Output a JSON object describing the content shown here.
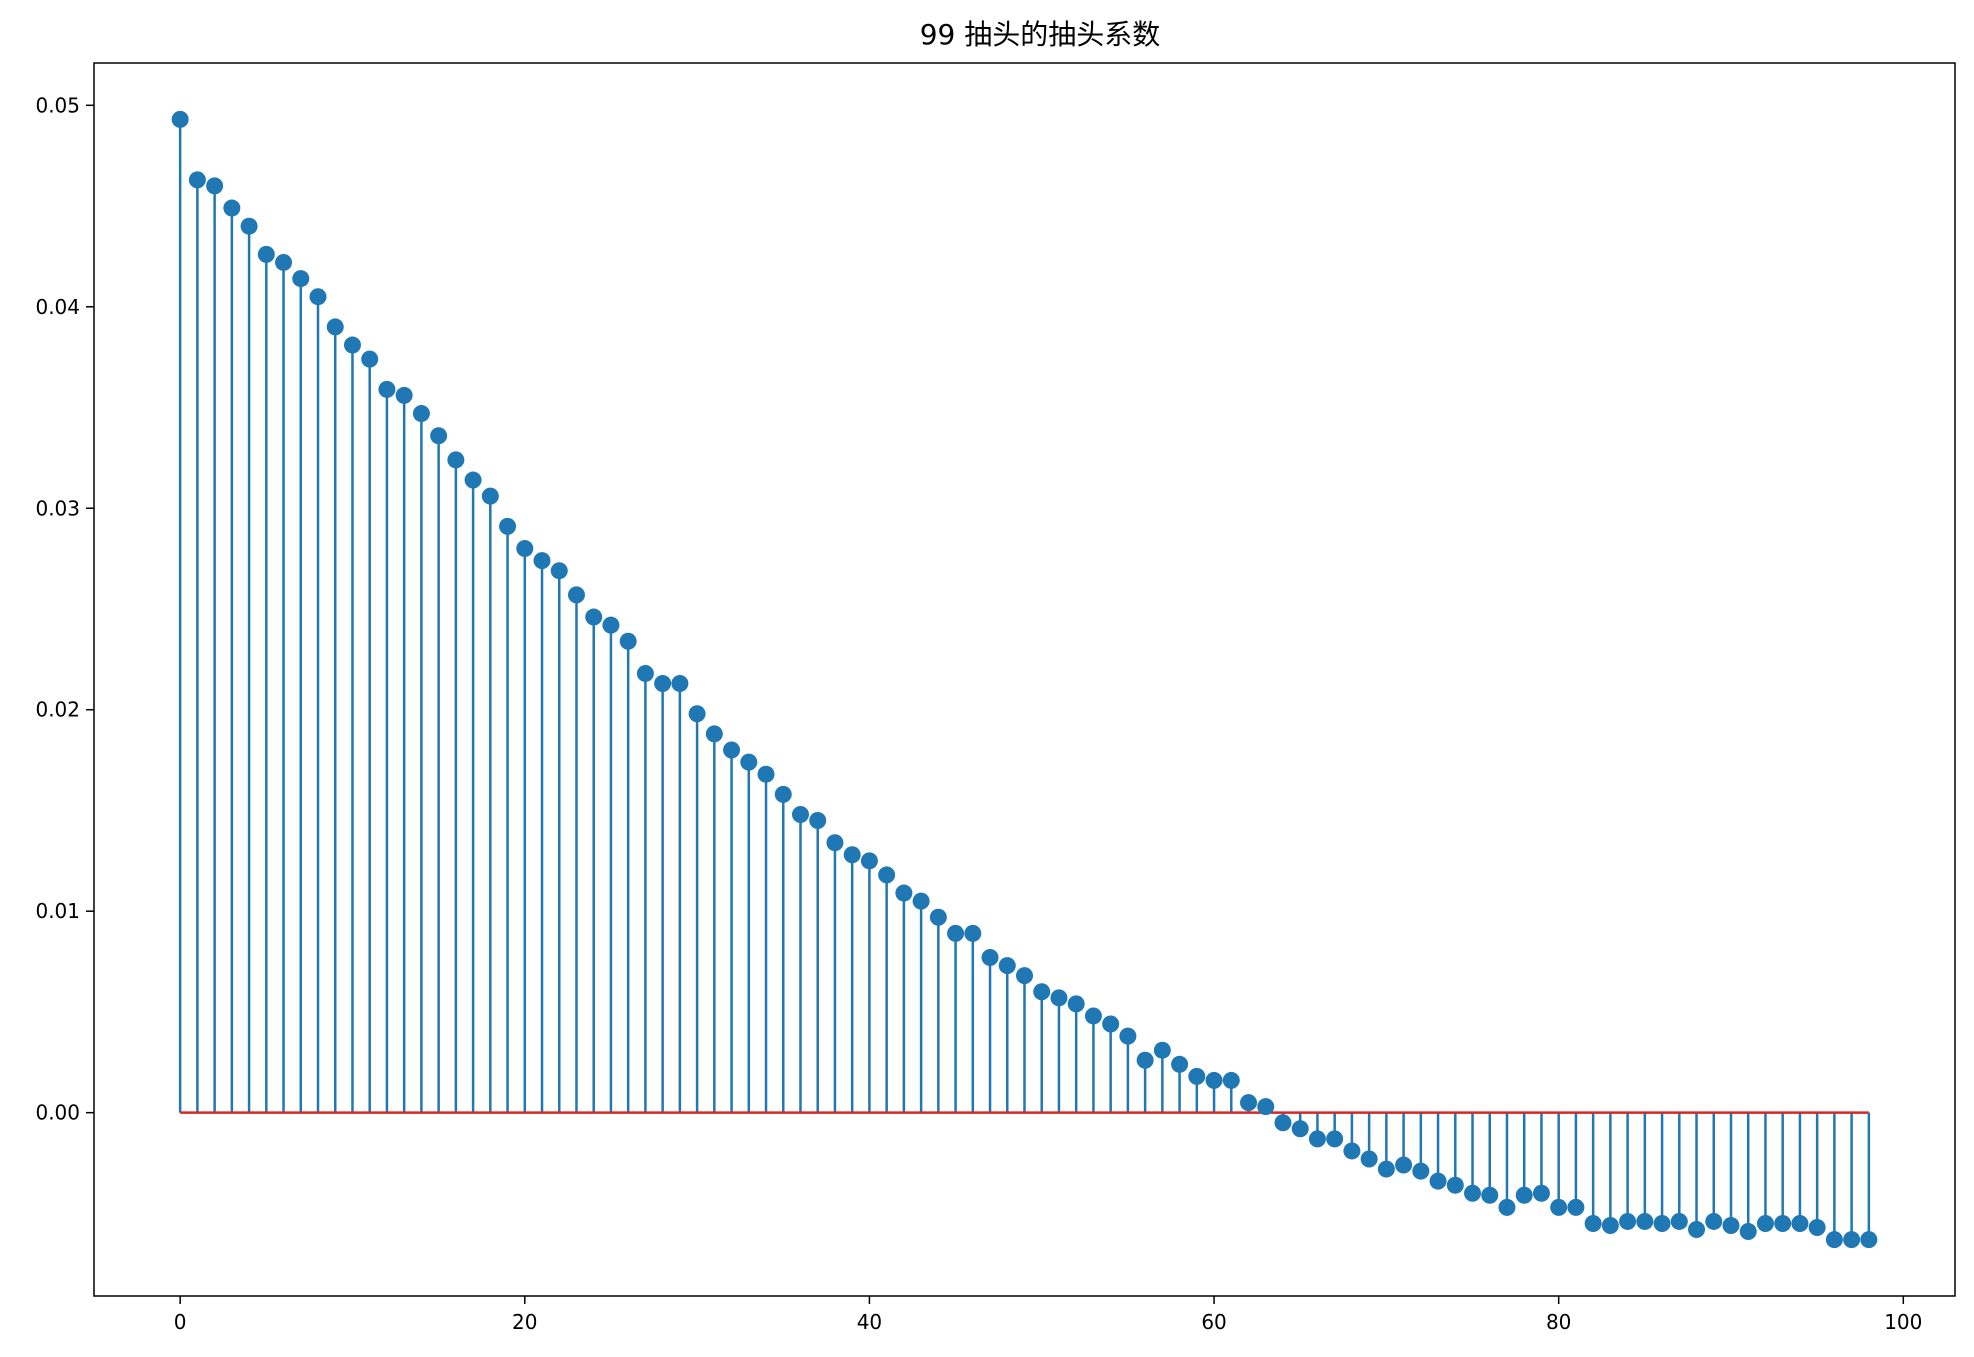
{
  "chart_data": {
    "type": "stem",
    "title": "99 抽头的抽头系数",
    "xlabel": "",
    "ylabel": "",
    "xlim": [
      -5,
      103
    ],
    "ylim": [
      -0.0091,
      0.0521
    ],
    "xticks": [
      0,
      20,
      40,
      60,
      80,
      100
    ],
    "xtick_labels": [
      "0",
      "20",
      "40",
      "60",
      "80",
      "100"
    ],
    "yticks": [
      0.0,
      0.01,
      0.02,
      0.03,
      0.04,
      0.05
    ],
    "ytick_labels": [
      "0.00",
      "0.01",
      "0.02",
      "0.03",
      "0.04",
      "0.05"
    ],
    "grid": false,
    "colors": {
      "stem": "#1f77b4",
      "marker": "#1f77b4",
      "baseline": "#d62728"
    },
    "baseline": 0,
    "x_start": 0,
    "values": [
      0.0493,
      0.0463,
      0.046,
      0.0449,
      0.044,
      0.0426,
      0.0422,
      0.0414,
      0.0405,
      0.039,
      0.0381,
      0.0374,
      0.0359,
      0.0356,
      0.0347,
      0.0336,
      0.0324,
      0.0314,
      0.0306,
      0.0291,
      0.028,
      0.0274,
      0.0269,
      0.0257,
      0.0246,
      0.0242,
      0.0234,
      0.0218,
      0.0213,
      0.0213,
      0.0198,
      0.0188,
      0.018,
      0.0174,
      0.0168,
      0.0158,
      0.0148,
      0.0145,
      0.0134,
      0.0128,
      0.0125,
      0.0118,
      0.0109,
      0.0105,
      0.0097,
      0.0089,
      0.0089,
      0.0077,
      0.0073,
      0.0068,
      0.006,
      0.0057,
      0.0054,
      0.0048,
      0.0044,
      0.0038,
      0.0026,
      0.0031,
      0.0024,
      0.0018,
      0.0016,
      0.0016,
      0.0005,
      0.0003,
      -0.0005,
      -0.0008,
      -0.0013,
      -0.0013,
      -0.0019,
      -0.0023,
      -0.0028,
      -0.0026,
      -0.0029,
      -0.0034,
      -0.0036,
      -0.004,
      -0.0041,
      -0.0047,
      -0.0041,
      -0.004,
      -0.0047,
      -0.0047,
      -0.0055,
      -0.0056,
      -0.0054,
      -0.0054,
      -0.0055,
      -0.0054,
      -0.0058,
      -0.0054,
      -0.0056,
      -0.0059,
      -0.0055,
      -0.0055,
      -0.0055,
      -0.0057,
      -0.0063,
      -0.0063,
      -0.0063
    ]
  }
}
